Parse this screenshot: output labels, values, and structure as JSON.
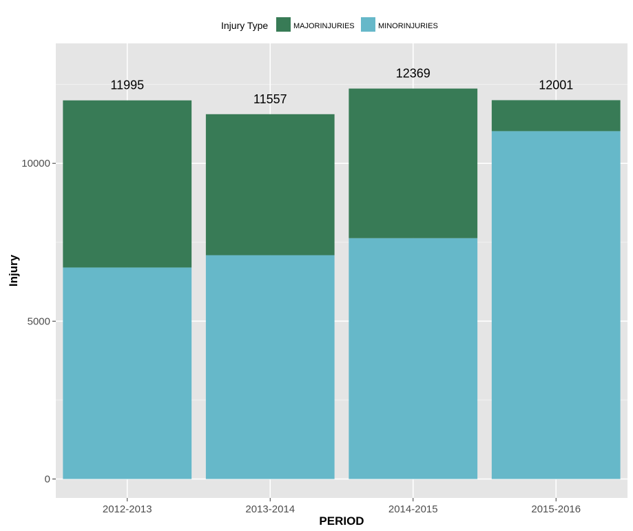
{
  "chart_data": {
    "type": "bar",
    "stacked": true,
    "xlabel": "PERIOD",
    "ylabel": "Injury",
    "categories": [
      "2012-2013",
      "2013-2014",
      "2014-2015",
      "2015-2016"
    ],
    "series": [
      {
        "name": "MINORINJURIES",
        "color": "#66b8c9",
        "values": [
          6700,
          7090,
          7630,
          11020
        ]
      },
      {
        "name": "MAJORINJURIES",
        "color": "#387b56",
        "values": [
          5295,
          4467,
          4739,
          981
        ]
      }
    ],
    "totals": [
      "11995",
      "11557",
      "12369",
      "12001"
    ],
    "yticks": [
      0,
      5000,
      10000
    ],
    "ytick_labels": [
      "0",
      "5000",
      "10000"
    ],
    "ylim": [
      -600,
      13800
    ],
    "grid": true,
    "legend": {
      "title": "Injury Type",
      "position": "top",
      "order": [
        "MAJORINJURIES",
        "MINORINJURIES"
      ]
    }
  }
}
